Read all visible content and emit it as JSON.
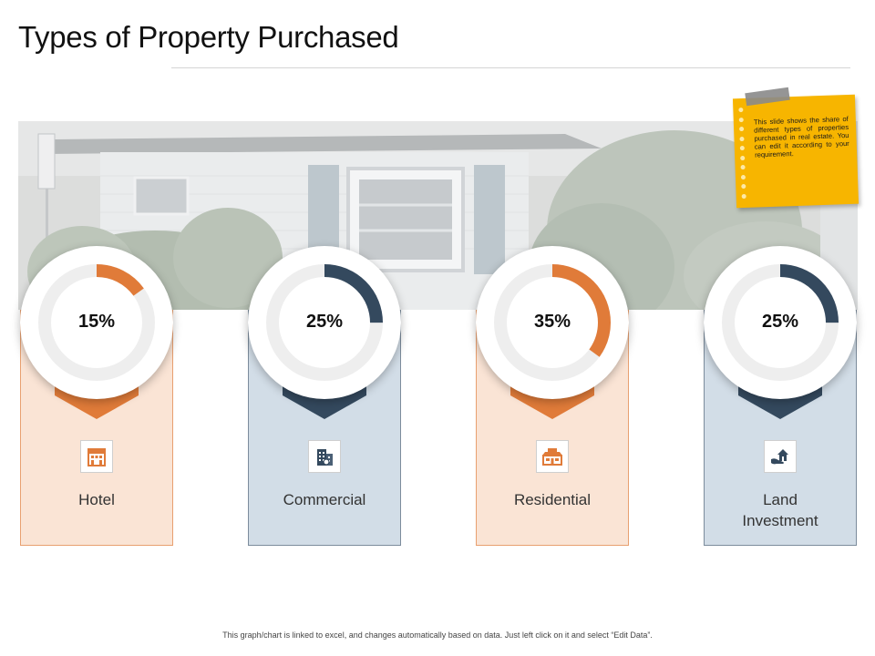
{
  "title": "Types of Property Purchased",
  "note": {
    "text": "This slide shows the share of different types of properties purchased in real estate. You can edit it according to your requirement."
  },
  "colors": {
    "orange": "#e07b39",
    "navy": "#34495e",
    "ring_track": "#eeeeee",
    "note": "#f7b500"
  },
  "chart_data": {
    "type": "pie",
    "categories": [
      "Hotel",
      "Commercial",
      "Residential",
      "Land Investment"
    ],
    "values": [
      15,
      25,
      35,
      25
    ],
    "value_labels": [
      "15%",
      "25%",
      "35%",
      "25%"
    ]
  },
  "cards": [
    {
      "label": "Hotel",
      "value": "15%",
      "percent": 15,
      "color": "orange",
      "icon": "hotel-icon"
    },
    {
      "label": "Commercial",
      "value": "25%",
      "percent": 25,
      "color": "navy",
      "icon": "office-building-icon"
    },
    {
      "label": "Residential",
      "value": "35%",
      "percent": 35,
      "color": "orange",
      "icon": "house-icon"
    },
    {
      "label": "Land\nInvestment",
      "value": "25%",
      "percent": 25,
      "color": "navy",
      "icon": "hand-house-icon"
    }
  ],
  "footer": "This graph/chart is linked to excel, and changes automatically based on data. Just left click on it and select “Edit Data”."
}
